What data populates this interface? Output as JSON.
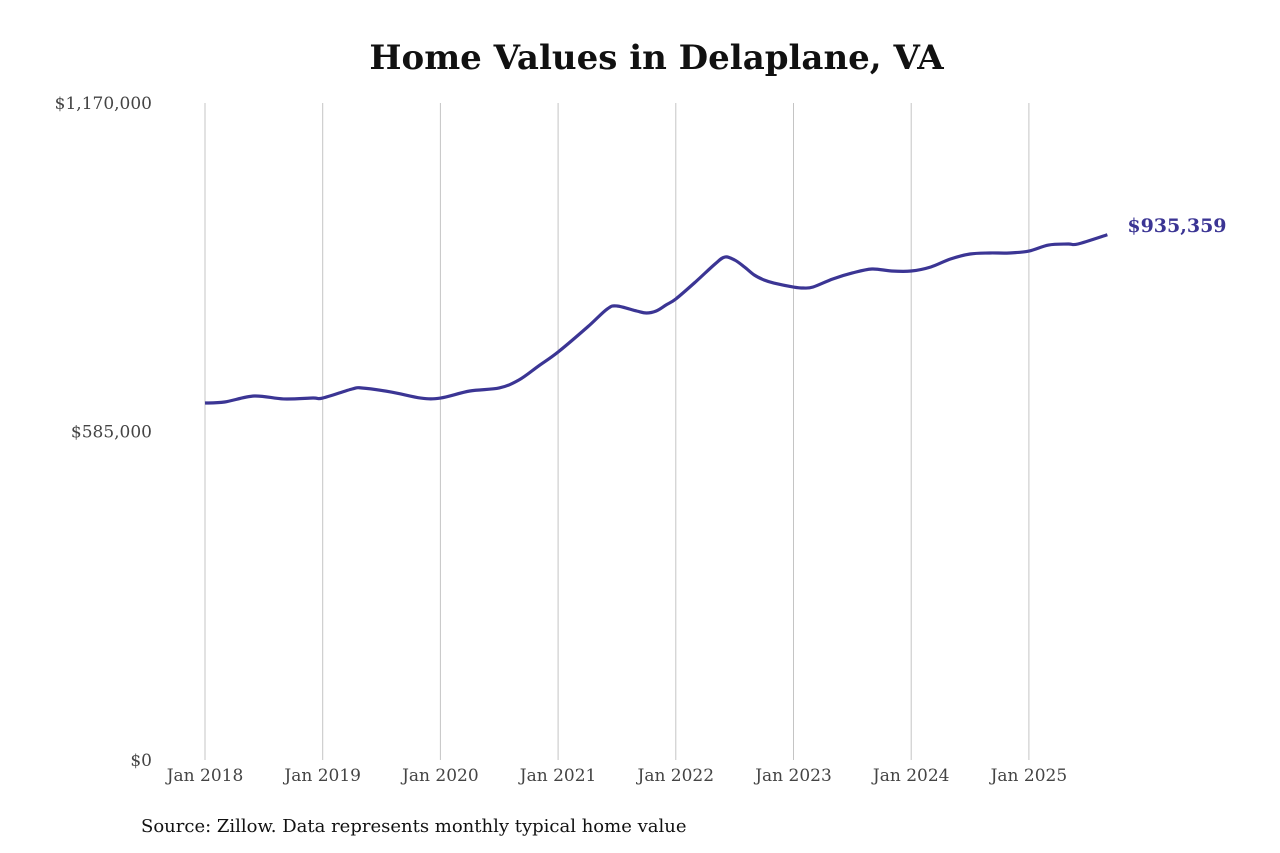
{
  "chart_data": {
    "type": "line",
    "title": "Home Values in Delaplane, VA",
    "source": "Source: Zillow. Data represents monthly typical home value",
    "xlabel": "",
    "ylabel": "",
    "ylim": [
      0,
      1170000
    ],
    "y_ticks": [
      0,
      585000,
      1170000
    ],
    "y_tick_labels": [
      "$0",
      "$585,000",
      "$1,170,000"
    ],
    "x_ticks": [
      "2018-01",
      "2019-01",
      "2020-01",
      "2021-01",
      "2022-01",
      "2023-01",
      "2024-01",
      "2025-01"
    ],
    "x_tick_labels": [
      "Jan 2018",
      "Jan 2019",
      "Jan 2020",
      "Jan 2021",
      "Jan 2022",
      "Jan 2023",
      "Jan 2024",
      "Jan 2025"
    ],
    "grid": "vertical lines at x ticks",
    "line_color": "#3b3594",
    "end_label": "$935,359",
    "series": [
      {
        "x": [
          "2018-01",
          "2018-03",
          "2018-06",
          "2018-09",
          "2018-12",
          "2019-01",
          "2019-04",
          "2019-05",
          "2019-08",
          "2019-11",
          "2020-01",
          "2020-04",
          "2020-07",
          "2020-09",
          "2020-11",
          "2021-01",
          "2021-04",
          "2021-06",
          "2021-07",
          "2021-09",
          "2021-10",
          "2021-11",
          "2021-12",
          "2022-01",
          "2022-03",
          "2022-05",
          "2022-06",
          "2022-07",
          "2022-08",
          "2022-09",
          "2022-10",
          "2022-11",
          "2023-01",
          "2023-02",
          "2023-03",
          "2023-05",
          "2023-07",
          "2023-09",
          "2023-11",
          "2024-01",
          "2024-03",
          "2024-05",
          "2024-07",
          "2024-09",
          "2024-11",
          "2025-01",
          "2025-03",
          "2025-05",
          "2025-06",
          "2025-09"
        ],
        "values": [
          635700,
          637500,
          648200,
          643000,
          644600,
          644600,
          660700,
          662500,
          655300,
          644600,
          644600,
          657100,
          662500,
          676700,
          701600,
          726600,
          771100,
          803100,
          808500,
          799600,
          796000,
          799600,
          810300,
          821000,
          851200,
          883300,
          895700,
          890400,
          878000,
          863700,
          854800,
          849400,
          842300,
          840500,
          842300,
          856600,
          867300,
          874400,
          870800,
          870800,
          878000,
          892200,
          901100,
          902900,
          902900,
          906400,
          917100,
          918900,
          918900,
          935359
        ]
      }
    ]
  }
}
